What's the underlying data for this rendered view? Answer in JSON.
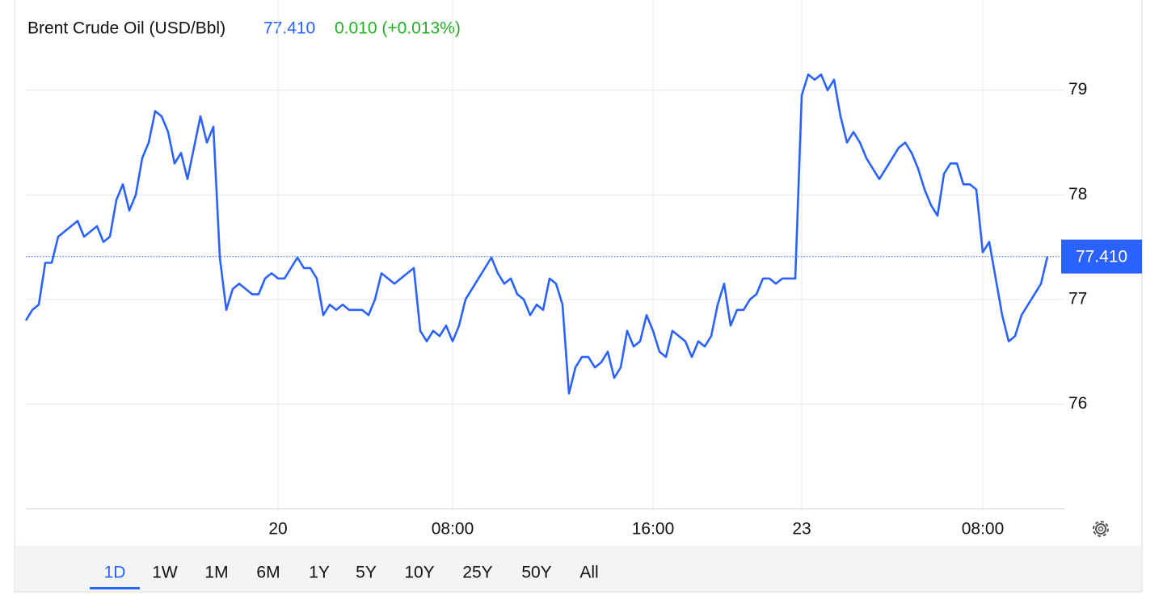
{
  "chart_data": {
    "type": "line",
    "title": "Brent Crude Oil (USD/Bbl)",
    "price_label": "77.410",
    "change_label": "0.010 (+0.013%)",
    "color": "#2962ff",
    "change_color": "#22b022",
    "grid": true,
    "ylim": [
      75,
      79.8
    ],
    "yticks": [
      76,
      77,
      78,
      79
    ],
    "reference_line": {
      "value": 77.41,
      "label": "77.410"
    },
    "categories": [
      null,
      null,
      null,
      null,
      null,
      null,
      null,
      null,
      null,
      null,
      null,
      null,
      null,
      null,
      null,
      null,
      null,
      null,
      null,
      null,
      null,
      null,
      null,
      null,
      null,
      null,
      null,
      null,
      null,
      null,
      null,
      null,
      null,
      null,
      null,
      null,
      null,
      null,
      null,
      "20",
      null,
      null,
      null,
      null,
      null,
      null,
      null,
      null,
      null,
      null,
      null,
      null,
      null,
      null,
      null,
      null,
      null,
      null,
      null,
      null,
      null,
      null,
      null,
      null,
      null,
      null,
      "08:00",
      null,
      null,
      null,
      null,
      null,
      null,
      null,
      null,
      null,
      null,
      null,
      null,
      null,
      null,
      null,
      null,
      null,
      null,
      null,
      null,
      null,
      null,
      null,
      null,
      null,
      null,
      null,
      null,
      null,
      null,
      "16:00",
      null,
      null,
      null,
      null,
      null,
      null,
      null,
      null,
      null,
      null,
      null,
      null,
      null,
      null,
      null,
      null,
      null,
      null,
      null,
      null,
      null,
      null,
      "23",
      null,
      null,
      null,
      null,
      null,
      null,
      null,
      null,
      null,
      null,
      null,
      null,
      null,
      null,
      null,
      null,
      null,
      null,
      null,
      null,
      null,
      null,
      null,
      null,
      null,
      null,
      null,
      "08:00",
      null,
      null,
      null,
      null,
      null,
      null,
      null,
      null,
      null,
      null
    ],
    "values": [
      76.8,
      76.9,
      76.95,
      77.35,
      77.35,
      77.6,
      77.65,
      77.7,
      77.75,
      77.6,
      77.65,
      77.7,
      77.55,
      77.6,
      77.95,
      78.1,
      77.85,
      78.0,
      78.35,
      78.5,
      78.8,
      78.75,
      78.6,
      78.3,
      78.4,
      78.15,
      78.45,
      78.75,
      78.5,
      78.65,
      77.4,
      76.9,
      77.1,
      77.15,
      77.1,
      77.05,
      77.05,
      77.2,
      77.25,
      77.2,
      77.2,
      77.3,
      77.4,
      77.3,
      77.3,
      77.2,
      76.85,
      76.95,
      76.9,
      76.95,
      76.9,
      76.9,
      76.9,
      76.85,
      77.0,
      77.25,
      77.2,
      77.15,
      77.2,
      77.25,
      77.3,
      76.7,
      76.6,
      76.7,
      76.65,
      76.75,
      76.6,
      76.75,
      77.0,
      77.1,
      77.2,
      77.3,
      77.4,
      77.25,
      77.15,
      77.2,
      77.05,
      77.0,
      76.85,
      76.95,
      76.9,
      77.2,
      77.15,
      76.95,
      76.1,
      76.35,
      76.45,
      76.45,
      76.35,
      76.4,
      76.5,
      76.25,
      76.35,
      76.7,
      76.55,
      76.6,
      76.85,
      76.7,
      76.5,
      76.45,
      76.7,
      76.65,
      76.6,
      76.45,
      76.6,
      76.55,
      76.65,
      76.95,
      77.15,
      76.75,
      76.9,
      76.9,
      77.0,
      77.05,
      77.2,
      77.2,
      77.15,
      77.2,
      77.2,
      77.2,
      78.95,
      79.15,
      79.1,
      79.15,
      79.0,
      79.1,
      78.75,
      78.5,
      78.6,
      78.5,
      78.35,
      78.25,
      78.15,
      78.25,
      78.35,
      78.45,
      78.5,
      78.4,
      78.25,
      78.05,
      77.9,
      77.8,
      78.2,
      78.3,
      78.3,
      78.1,
      78.1,
      78.05,
      77.45,
      77.55,
      77.2,
      76.85,
      76.6,
      76.65,
      76.85,
      76.95,
      77.05,
      77.15,
      77.41
    ]
  },
  "controls": {
    "ranges": [
      "1D",
      "1W",
      "1M",
      "6M",
      "1Y",
      "5Y",
      "10Y",
      "25Y",
      "50Y",
      "All"
    ]
  }
}
